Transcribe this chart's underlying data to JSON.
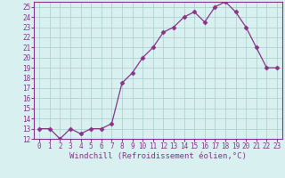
{
  "x": [
    0,
    1,
    2,
    3,
    4,
    5,
    6,
    7,
    8,
    9,
    10,
    11,
    12,
    13,
    14,
    15,
    16,
    17,
    18,
    19,
    20,
    21,
    22,
    23
  ],
  "y": [
    13,
    13,
    12,
    13,
    12.5,
    13,
    13,
    13.5,
    17.5,
    18.5,
    20,
    21,
    22.5,
    23,
    24,
    24.5,
    23.5,
    25,
    25.5,
    24.5,
    23,
    21,
    19,
    19
  ],
  "line_color": "#883388",
  "marker": "D",
  "marker_size": 2.5,
  "bg_color": "#d8f0f0",
  "grid_color": "#aacccc",
  "xlabel": "Windchill (Refroidissement éolien,°C)",
  "xlim": [
    -0.5,
    23.5
  ],
  "ylim": [
    12,
    25.5
  ],
  "yticks": [
    12,
    13,
    14,
    15,
    16,
    17,
    18,
    19,
    20,
    21,
    22,
    23,
    24,
    25
  ],
  "xticks": [
    0,
    1,
    2,
    3,
    4,
    5,
    6,
    7,
    8,
    9,
    10,
    11,
    12,
    13,
    14,
    15,
    16,
    17,
    18,
    19,
    20,
    21,
    22,
    23
  ],
  "tick_label_fontsize": 5.5,
  "xlabel_fontsize": 6.5,
  "label_color": "#883388",
  "spine_color": "#883388"
}
